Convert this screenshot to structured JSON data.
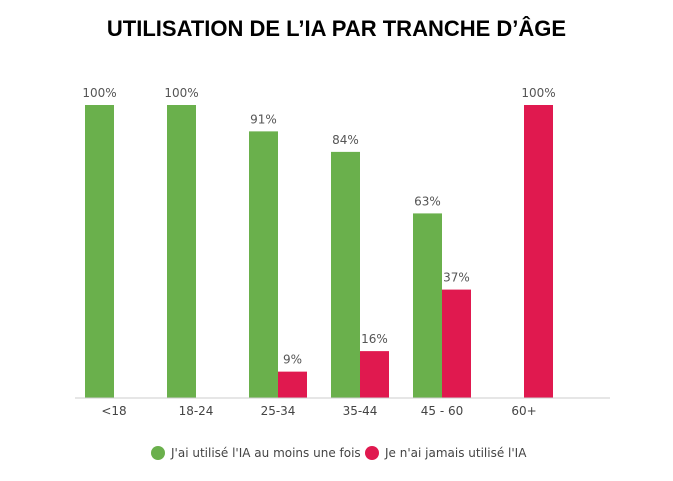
{
  "chart_data": {
    "type": "bar",
    "title": "UTILISATION DE L’IA PAR TRANCHE D’ÂGE",
    "xlabel": "",
    "ylabel": "",
    "ylim": [
      0,
      100
    ],
    "grid": false,
    "legend_position": "bottom",
    "categories": [
      "<18",
      "18-24",
      "25-34",
      "35-44",
      "45 - 60",
      "60+"
    ],
    "series": [
      {
        "name": "J'ai utilisé l'IA au moins une fois",
        "color": "#6ab04c",
        "values": [
          100,
          100,
          91,
          84,
          63,
          null
        ],
        "labels": [
          "100%",
          "100%",
          "91%",
          "84%",
          "63%",
          ""
        ]
      },
      {
        "name": "Je n'ai jamais utilisé l'IA",
        "color": "#e0194f",
        "values": [
          null,
          null,
          9,
          16,
          37,
          100
        ],
        "labels": [
          "",
          "",
          "9%",
          "16%",
          "37%",
          "100%"
        ]
      }
    ]
  }
}
